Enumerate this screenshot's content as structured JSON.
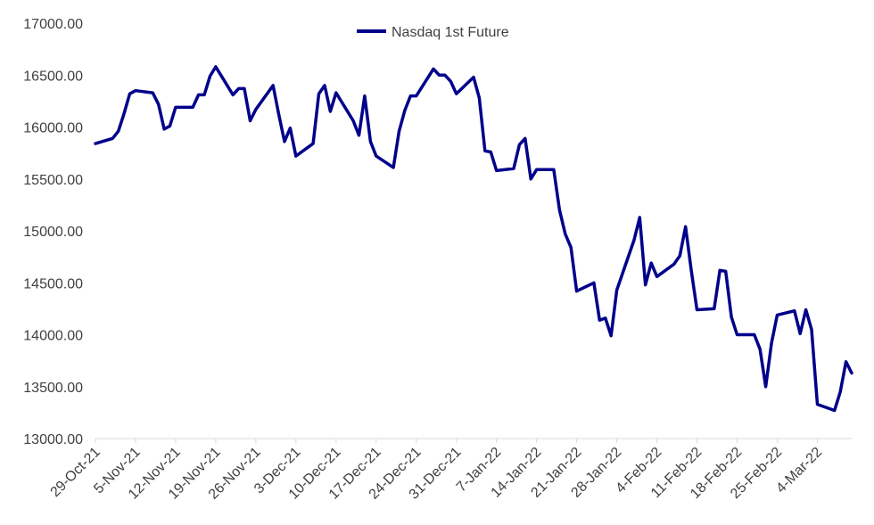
{
  "chart_data": {
    "type": "line",
    "title": "",
    "xlabel": "",
    "ylabel": "",
    "ylim": [
      13000,
      17000
    ],
    "y_ticks": [
      "13000.00",
      "13500.00",
      "14000.00",
      "14500.00",
      "15000.00",
      "15500.00",
      "16000.00",
      "16500.00",
      "17000.00"
    ],
    "x_ticks": [
      "29-Oct-21",
      "5-Nov-21",
      "12-Nov-21",
      "19-Nov-21",
      "26-Nov-21",
      "3-Dec-21",
      "10-Dec-21",
      "17-Dec-21",
      "24-Dec-21",
      "31-Dec-21",
      "7-Jan-22",
      "14-Jan-22",
      "21-Jan-22",
      "28-Jan-22",
      "4-Feb-22",
      "11-Feb-22",
      "18-Feb-22",
      "25-Feb-22",
      "4-Mar-22"
    ],
    "legend_position": "top",
    "grid": false,
    "series": [
      {
        "name": "Nasdaq 1st Future",
        "color": "#00008b",
        "x": [
          "29-Oct-21",
          "1-Nov-21",
          "2-Nov-21",
          "3-Nov-21",
          "4-Nov-21",
          "5-Nov-21",
          "8-Nov-21",
          "9-Nov-21",
          "10-Nov-21",
          "11-Nov-21",
          "12-Nov-21",
          "15-Nov-21",
          "16-Nov-21",
          "17-Nov-21",
          "18-Nov-21",
          "19-Nov-21",
          "22-Nov-21",
          "23-Nov-21",
          "24-Nov-21",
          "25-Nov-21",
          "26-Nov-21",
          "29-Nov-21",
          "30-Nov-21",
          "1-Dec-21",
          "2-Dec-21",
          "3-Dec-21",
          "6-Dec-21",
          "7-Dec-21",
          "8-Dec-21",
          "9-Dec-21",
          "10-Dec-21",
          "13-Dec-21",
          "14-Dec-21",
          "15-Dec-21",
          "16-Dec-21",
          "17-Dec-21",
          "20-Dec-21",
          "21-Dec-21",
          "22-Dec-21",
          "23-Dec-21",
          "24-Dec-21",
          "27-Dec-21",
          "28-Dec-21",
          "29-Dec-21",
          "30-Dec-21",
          "31-Dec-21",
          "3-Jan-22",
          "4-Jan-22",
          "5-Jan-22",
          "6-Jan-22",
          "7-Jan-22",
          "10-Jan-22",
          "11-Jan-22",
          "12-Jan-22",
          "13-Jan-22",
          "14-Jan-22",
          "17-Jan-22",
          "18-Jan-22",
          "19-Jan-22",
          "20-Jan-22",
          "21-Jan-22",
          "24-Jan-22",
          "25-Jan-22",
          "26-Jan-22",
          "27-Jan-22",
          "28-Jan-22",
          "31-Jan-22",
          "1-Feb-22",
          "2-Feb-22",
          "3-Feb-22",
          "4-Feb-22",
          "7-Feb-22",
          "8-Feb-22",
          "9-Feb-22",
          "10-Feb-22",
          "11-Feb-22",
          "14-Feb-22",
          "15-Feb-22",
          "16-Feb-22",
          "17-Feb-22",
          "18-Feb-22",
          "21-Feb-22",
          "22-Feb-22",
          "23-Feb-22",
          "24-Feb-22",
          "25-Feb-22",
          "28-Feb-22",
          "1-Mar-22",
          "2-Mar-22",
          "3-Mar-22",
          "4-Mar-22",
          "7-Mar-22",
          "8-Mar-22",
          "9-Mar-22",
          "10-Mar-22"
        ],
        "values": [
          15840,
          15890,
          15960,
          16130,
          16320,
          16350,
          16330,
          16220,
          15980,
          16010,
          16190,
          16190,
          16310,
          16310,
          16490,
          16580,
          16310,
          16370,
          16370,
          16060,
          16170,
          16400,
          16120,
          15860,
          15990,
          15720,
          15840,
          16320,
          16400,
          16150,
          16330,
          16060,
          15920,
          16300,
          15860,
          15720,
          15610,
          15960,
          16160,
          16300,
          16300,
          16560,
          16500,
          16500,
          16440,
          16320,
          16480,
          16280,
          15770,
          15760,
          15580,
          15600,
          15830,
          15890,
          15500,
          15590,
          15590,
          15200,
          14970,
          14840,
          14420,
          14500,
          14140,
          14160,
          13990,
          14430,
          14910,
          15130,
          14480,
          14690,
          14560,
          14680,
          14760,
          15040,
          14620,
          14240,
          14250,
          14620,
          14610,
          14170,
          14000,
          14000,
          13860,
          13500,
          13920,
          14190,
          14230,
          14010,
          14240,
          14050,
          13330,
          13270,
          13450,
          13740,
          13630
        ]
      }
    ]
  }
}
